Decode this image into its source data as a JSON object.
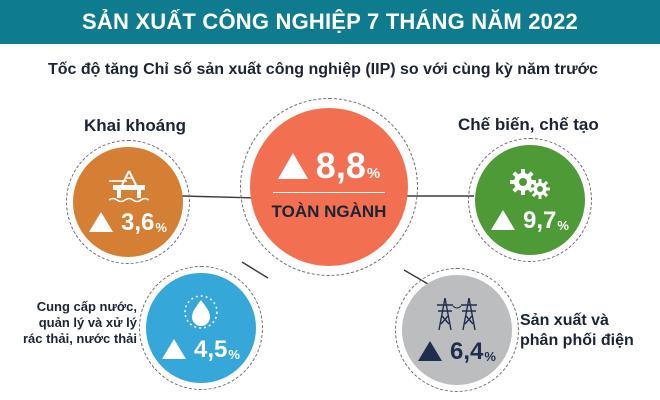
{
  "title": "SẢN XUẤT CÔNG NGHIỆP 7 THÁNG NĂM 2022",
  "subtitle": "Tốc độ tăng Chỉ số sản xuất công nghiệp (IIP) so với cùng kỳ năm trước",
  "center": {
    "value": "8,8",
    "unit": "%",
    "label": "TOÀN NGÀNH",
    "color": "#f26f51"
  },
  "sectors": {
    "mining": {
      "name": "Khai khoáng",
      "value": "3,6",
      "unit": "%",
      "icon": "oil-rig-icon",
      "color": "#d57f35"
    },
    "manufacturing": {
      "name": "Chế biến, chế tạo",
      "value": "9,7",
      "unit": "%",
      "icon": "gears-icon",
      "color": "#4e9a36"
    },
    "water": {
      "name_lines": [
        "Cung cấp nước,",
        "quản lý và xử lý",
        "rác thải, nước thải"
      ],
      "value": "4,5",
      "unit": "%",
      "icon": "water-drop-icon",
      "color": "#35a7d8"
    },
    "electricity": {
      "name_lines": [
        "Sản xuất và",
        "phân phối điện"
      ],
      "value": "6,4",
      "unit": "%",
      "icon": "power-tower-icon",
      "color": "#bcbdbf"
    }
  }
}
